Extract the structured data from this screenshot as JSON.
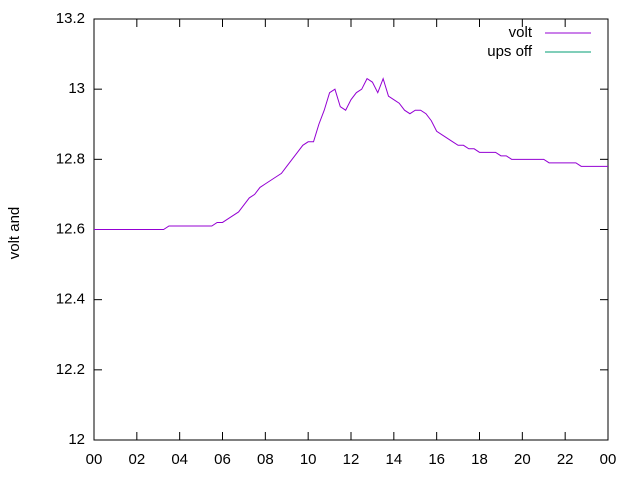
{
  "chart_data": {
    "type": "line",
    "ylabel": "volt and",
    "x": [
      0,
      0.25,
      0.5,
      0.75,
      1,
      1.25,
      1.5,
      1.75,
      2,
      2.25,
      2.5,
      2.75,
      3,
      3.25,
      3.5,
      3.75,
      4,
      4.25,
      4.5,
      4.75,
      5,
      5.25,
      5.5,
      5.75,
      6,
      6.25,
      6.5,
      6.75,
      7,
      7.25,
      7.5,
      7.75,
      8,
      8.25,
      8.5,
      8.75,
      9,
      9.25,
      9.5,
      9.75,
      10,
      10.25,
      10.5,
      10.75,
      11,
      11.25,
      11.5,
      11.75,
      12,
      12.25,
      12.5,
      12.75,
      13,
      13.25,
      13.5,
      13.75,
      14,
      14.25,
      14.5,
      14.75,
      15,
      15.25,
      15.5,
      15.75,
      16,
      16.25,
      16.5,
      16.75,
      17,
      17.25,
      17.5,
      17.75,
      18,
      18.25,
      18.5,
      18.75,
      19,
      19.25,
      19.5,
      19.75,
      20,
      20.25,
      20.5,
      20.75,
      21,
      21.25,
      21.5,
      21.75,
      22,
      22.25,
      22.5,
      22.75,
      23,
      23.25,
      23.5,
      23.75,
      24
    ],
    "series": [
      {
        "name": "volt",
        "color": "#9400d3",
        "values": [
          12.6,
          12.6,
          12.6,
          12.6,
          12.6,
          12.6,
          12.6,
          12.6,
          12.6,
          12.6,
          12.6,
          12.6,
          12.6,
          12.6,
          12.61,
          12.61,
          12.61,
          12.61,
          12.61,
          12.61,
          12.61,
          12.61,
          12.61,
          12.62,
          12.62,
          12.63,
          12.64,
          12.65,
          12.67,
          12.69,
          12.7,
          12.72,
          12.73,
          12.74,
          12.75,
          12.76,
          12.78,
          12.8,
          12.82,
          12.84,
          12.85,
          12.85,
          12.9,
          12.94,
          12.99,
          13.0,
          12.95,
          12.94,
          12.97,
          12.99,
          13.0,
          13.03,
          13.02,
          12.99,
          13.03,
          12.98,
          12.97,
          12.96,
          12.94,
          12.93,
          12.94,
          12.94,
          12.93,
          12.91,
          12.88,
          12.87,
          12.86,
          12.85,
          12.84,
          12.84,
          12.83,
          12.83,
          12.82,
          12.82,
          12.82,
          12.82,
          12.81,
          12.81,
          12.8,
          12.8,
          12.8,
          12.8,
          12.8,
          12.8,
          12.8,
          12.79,
          12.79,
          12.79,
          12.79,
          12.79,
          12.79,
          12.78,
          12.78,
          12.78,
          12.78,
          12.78,
          12.78
        ]
      },
      {
        "name": "ups off",
        "color": "#009e73",
        "values": [
          null,
          null,
          null,
          null,
          null,
          null,
          null,
          null,
          null,
          null,
          null,
          null,
          null,
          null,
          null,
          null,
          null,
          null,
          null,
          null,
          null,
          null,
          null,
          null,
          null,
          null,
          null,
          null,
          null,
          null,
          null,
          null,
          null,
          null,
          null,
          null,
          null,
          null,
          null,
          null,
          null,
          null,
          null,
          null,
          null,
          null,
          null,
          null,
          null,
          null,
          null,
          null,
          null,
          null,
          null,
          null,
          null,
          null,
          null,
          null,
          null,
          null,
          null,
          null,
          null,
          null,
          null,
          null,
          null,
          null,
          null,
          null,
          null,
          null,
          null,
          null,
          null,
          null,
          null,
          null,
          null,
          null,
          null,
          null,
          null,
          null,
          null,
          null,
          null,
          null,
          null,
          null,
          null,
          null,
          null,
          null,
          null
        ]
      }
    ],
    "xlim": [
      0,
      24
    ],
    "xticks": [
      {
        "value": 0,
        "label": "00"
      },
      {
        "value": 2,
        "label": "02"
      },
      {
        "value": 4,
        "label": "04"
      },
      {
        "value": 6,
        "label": "06"
      },
      {
        "value": 8,
        "label": "08"
      },
      10,
      12,
      14,
      16,
      18,
      20,
      22,
      {
        "value": 24,
        "label": "00"
      }
    ],
    "ylim": [
      12,
      13.2
    ],
    "yticks": [
      12,
      12.2,
      12.4,
      12.6,
      12.8,
      13,
      13.2
    ],
    "legend": "top-right"
  }
}
